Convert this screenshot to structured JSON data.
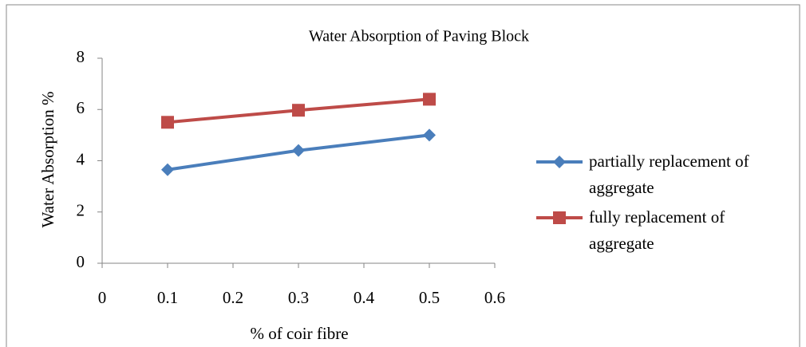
{
  "chart_data": {
    "type": "line",
    "title": "Water Absorption of Paving Block",
    "x_label": "% of coir fibre",
    "y_label": "Water Absorption  %",
    "x": [
      0.1,
      0.3,
      0.5
    ],
    "series": [
      {
        "name": "partially replacement of aggregate",
        "color": "#4a7ebb",
        "marker": "diamond",
        "values": [
          3.65,
          4.4,
          5.0
        ]
      },
      {
        "name": "fully replacement of aggregate",
        "color": "#be4b48",
        "marker": "square",
        "values": [
          5.5,
          5.97,
          6.4
        ]
      }
    ],
    "xlim": [
      0,
      0.6
    ],
    "xticks": [
      0,
      0.1,
      0.2,
      0.3,
      0.4,
      0.5,
      0.6
    ],
    "ylim": [
      0,
      8
    ],
    "yticks": [
      0,
      2,
      4,
      6,
      8
    ],
    "grid": false,
    "legend": "right"
  }
}
